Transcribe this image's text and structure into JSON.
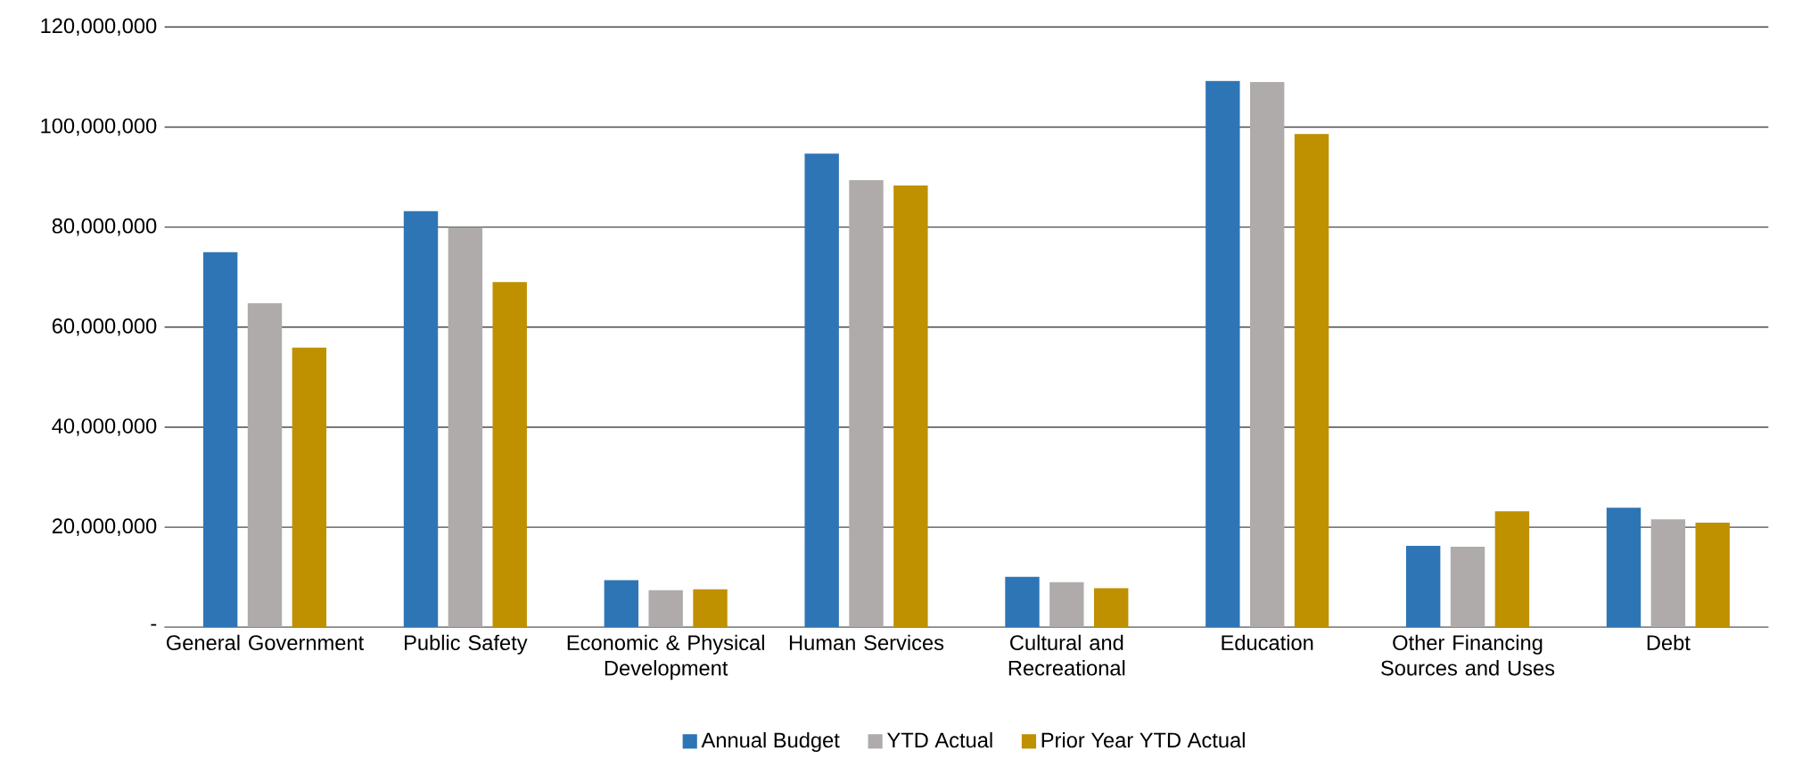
{
  "chart_data": {
    "type": "bar",
    "categories": [
      "General Government",
      "Public Safety",
      "Economic & Physical Development",
      "Human Services",
      "Cultural and Recreational",
      "Education",
      "Other Financing Sources and Uses",
      "Debt"
    ],
    "series": [
      {
        "name": "Annual Budget",
        "color": "#2e75b6",
        "values": [
          75000000,
          83200000,
          9400000,
          94700000,
          10100000,
          109200000,
          16300000,
          23900000
        ]
      },
      {
        "name": "YTD Actual",
        "color": "#afabab",
        "values": [
          64800000,
          80000000,
          7400000,
          89400000,
          9000000,
          109000000,
          16100000,
          21600000
        ]
      },
      {
        "name": "Prior Year YTD Actual",
        "color": "#bf9000",
        "values": [
          55900000,
          69000000,
          7600000,
          88300000,
          7800000,
          98600000,
          23200000,
          20900000
        ]
      }
    ],
    "ylim": [
      0,
      120000000
    ],
    "yticks": [
      {
        "value": 0,
        "label": "-"
      },
      {
        "value": 20000000,
        "label": "20,000,000"
      },
      {
        "value": 40000000,
        "label": "40,000,000"
      },
      {
        "value": 60000000,
        "label": "60,000,000"
      },
      {
        "value": 80000000,
        "label": "80,000,000"
      },
      {
        "value": 100000000,
        "label": "100,000,000"
      },
      {
        "value": 120000000,
        "label": "120,000,000"
      }
    ],
    "grid": "y",
    "legend": "bottom"
  }
}
